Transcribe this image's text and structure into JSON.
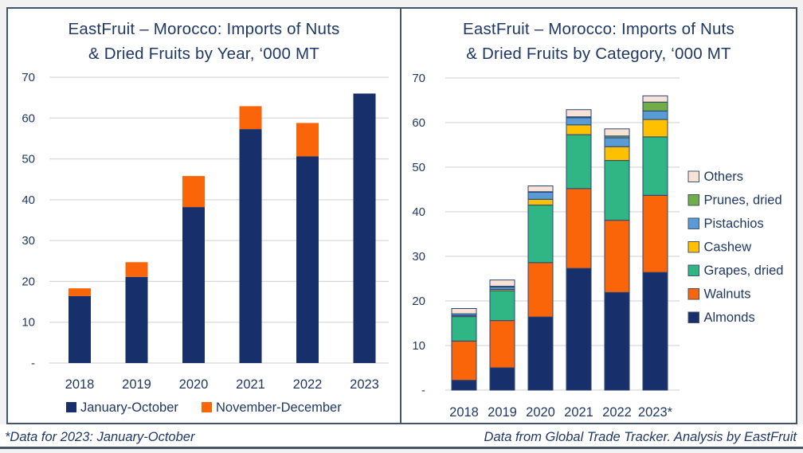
{
  "page": {
    "background": "#F2F2F2",
    "panel_border_color": "#44546A",
    "text_color": "#1F3864",
    "gridline_color": "#D9D9D9"
  },
  "footer": {
    "left": "*Data for 2023: January-October",
    "right": "Data from Global Trade Tracker. Analysis by EastFruit"
  },
  "chart_data": [
    {
      "type": "bar",
      "stacked": true,
      "title_lines": [
        "EastFruit – Morocco: Imports of Nuts",
        "& Dried Fruits by Year, ‘000 MT"
      ],
      "categories": [
        "2018",
        "2019",
        "2020",
        "2021",
        "2022",
        "2023"
      ],
      "series": [
        {
          "name": "January-October",
          "color": "#17306B",
          "values": [
            16.4,
            21.1,
            38.2,
            57.3,
            50.6,
            66.0
          ]
        },
        {
          "name": "November-December",
          "color": "#F96508",
          "values": [
            1.9,
            3.6,
            7.6,
            5.6,
            8.2,
            0
          ]
        }
      ],
      "ylim": [
        0,
        70
      ],
      "yticks": [
        [
          0,
          "-"
        ],
        [
          10,
          "10"
        ],
        [
          20,
          "20"
        ],
        [
          30,
          "30"
        ],
        [
          40,
          "40"
        ],
        [
          50,
          "50"
        ],
        [
          60,
          "60"
        ],
        [
          70,
          "70"
        ]
      ],
      "grid": true,
      "legend_position": "bottom",
      "segment_stroke": ""
    },
    {
      "type": "bar",
      "stacked": true,
      "title_lines": [
        "EastFruit – Morocco: Imports of Nuts",
        "& Dried Fruits by Category, ‘000 MT"
      ],
      "categories": [
        "2018",
        "2019",
        "2020",
        "2021",
        "2022",
        "2023*"
      ],
      "series": [
        {
          "name": "Almonds",
          "color": "#17306B",
          "values": [
            2.2,
            5.0,
            16.4,
            27.3,
            21.9,
            26.4
          ]
        },
        {
          "name": "Walnuts",
          "color": "#F96508",
          "values": [
            8.8,
            10.6,
            12.2,
            17.9,
            16.2,
            17.3
          ]
        },
        {
          "name": "Grapes, dried",
          "color": "#30B584",
          "values": [
            5.5,
            6.7,
            12.9,
            12.1,
            13.4,
            13.1
          ]
        },
        {
          "name": "Cashew",
          "color": "#FFC000",
          "values": [
            0.2,
            0.3,
            1.3,
            2.2,
            3.1,
            3.9
          ]
        },
        {
          "name": "Pistachios",
          "color": "#5B9BD5",
          "values": [
            0.4,
            0.5,
            1.6,
            1.6,
            2.0,
            1.9
          ]
        },
        {
          "name": "Prunes, dried",
          "color": "#70AD47",
          "values": [
            0,
            0.2,
            0.1,
            0.2,
            0.4,
            2.0
          ]
        },
        {
          "name": "Others",
          "color": "#F7E2D6",
          "values": [
            1.2,
            1.4,
            1.3,
            1.6,
            1.6,
            1.4
          ]
        }
      ],
      "ylim": [
        0,
        70
      ],
      "yticks": [
        [
          0,
          "-"
        ],
        [
          10,
          "10"
        ],
        [
          20,
          "20"
        ],
        [
          30,
          "30"
        ],
        [
          40,
          "40"
        ],
        [
          50,
          "50"
        ],
        [
          60,
          "60"
        ],
        [
          70,
          "70"
        ]
      ],
      "grid": true,
      "legend_position": "right",
      "legend_order": "reversed",
      "segment_stroke": "#2B4475"
    }
  ]
}
